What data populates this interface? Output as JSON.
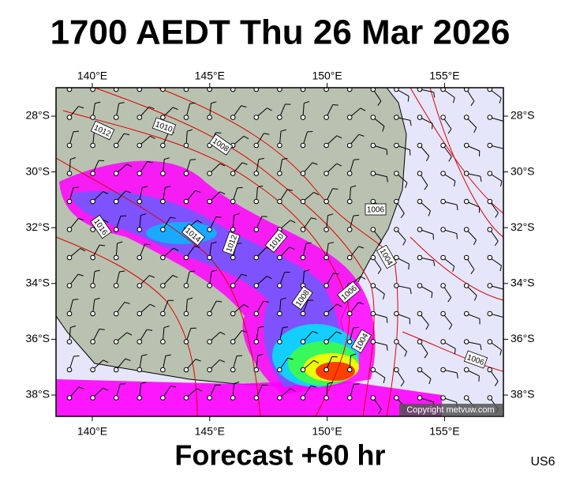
{
  "title": "1700 AEDT Thu 26 Mar 2026",
  "subtitle": "Forecast +60 hr",
  "code": "US6",
  "copyright": "Copyright metvuw.com",
  "map": {
    "lon_labels": [
      "140°E",
      "145°E",
      "150°E",
      "155°E"
    ],
    "lat_labels": [
      "28°S",
      "30°S",
      "32°S",
      "34°S",
      "36°S",
      "38°S"
    ],
    "isobar_labels": [
      "1012",
      "1010",
      "1008",
      "1016",
      "1014",
      "1012",
      "1010",
      "1008",
      "1006",
      "1006",
      "1004",
      "1004",
      "1006"
    ]
  }
}
